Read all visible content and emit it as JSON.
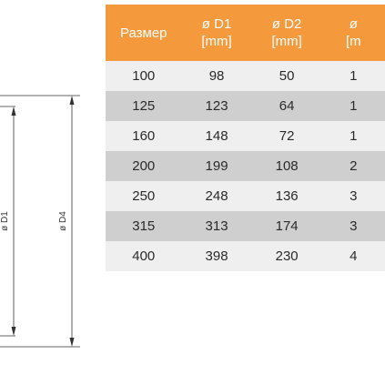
{
  "colors": {
    "header_bg": "#f59a3c",
    "row_light": "#efefef",
    "row_dark": "#cfcfcf",
    "line": "#333333"
  },
  "drawing": {
    "label_d1": "ø D1",
    "label_d4": "ø D4"
  },
  "table": {
    "headers": [
      {
        "name": "Размер",
        "unit": ""
      },
      {
        "name": "ø D1",
        "unit": "[mm]"
      },
      {
        "name": "ø D2",
        "unit": "[mm]"
      },
      {
        "name": "ø",
        "unit": "[m"
      }
    ],
    "rows": [
      [
        "100",
        "98",
        "50",
        "1"
      ],
      [
        "125",
        "123",
        "64",
        "1"
      ],
      [
        "160",
        "148",
        "72",
        "1"
      ],
      [
        "200",
        "199",
        "108",
        "2"
      ],
      [
        "250",
        "248",
        "136",
        "3"
      ],
      [
        "315",
        "313",
        "174",
        "3"
      ],
      [
        "400",
        "398",
        "230",
        "4"
      ]
    ]
  }
}
